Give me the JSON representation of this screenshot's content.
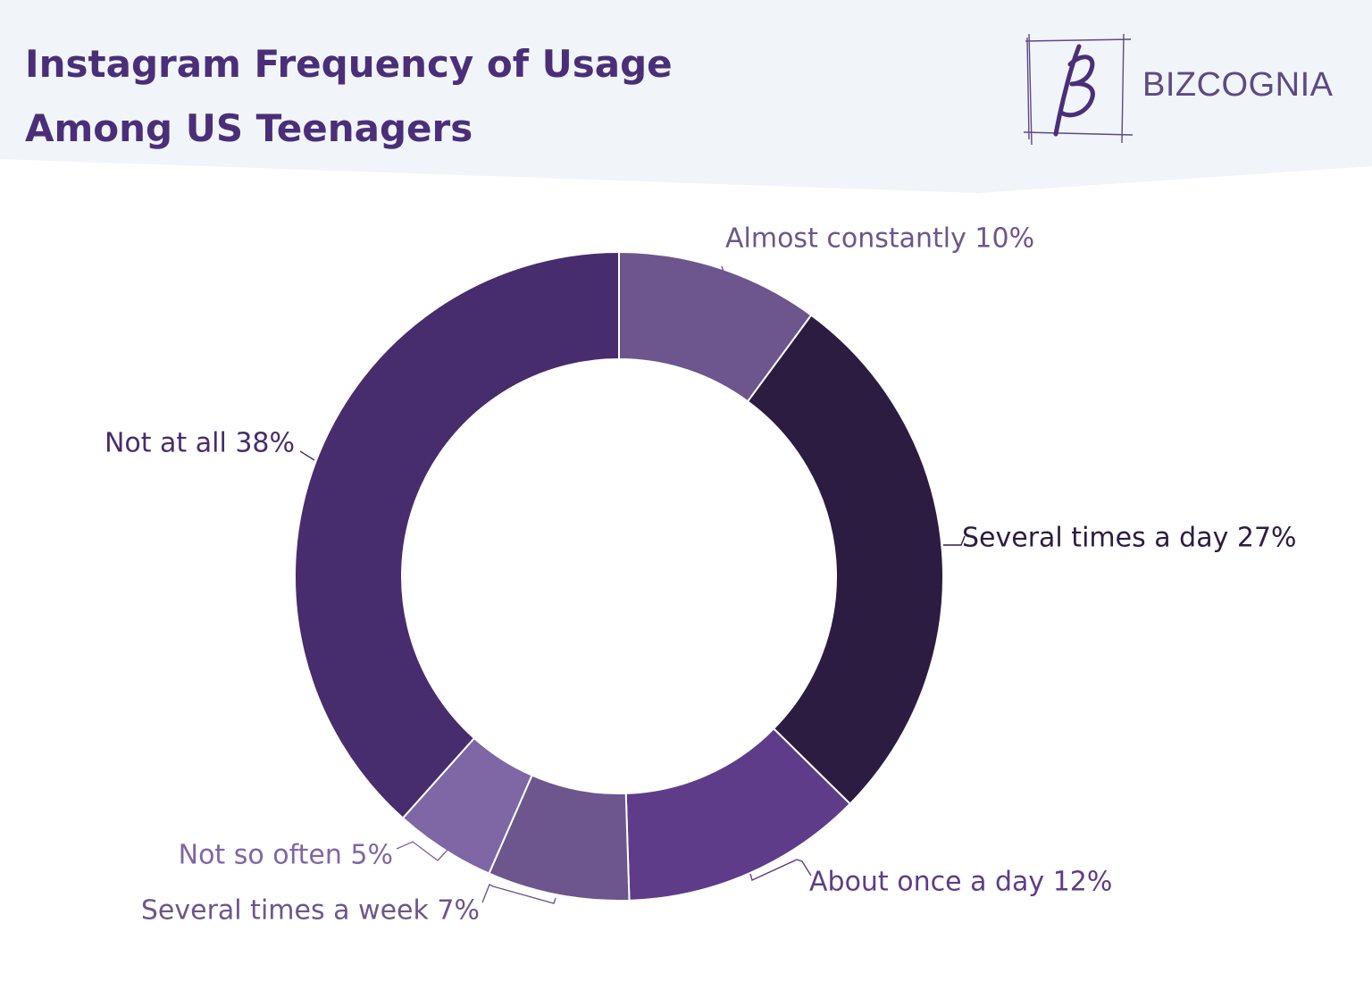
{
  "brand": {
    "name": "BIZCOGNIA"
  },
  "colors": {
    "header_bg": "#f1f4f9",
    "title": "#4a2f78"
  },
  "chart_data": {
    "type": "pie",
    "style": "donut",
    "title": {
      "line1": "Instagram Frequency of Usage",
      "line2": "Among US Teenagers"
    },
    "unit": "%",
    "start_angle_deg": 0,
    "direction": "clockwise",
    "slices": [
      {
        "label": "Almost constantly",
        "value": 10,
        "color": "#6c568d",
        "label_color": "#6c568d"
      },
      {
        "label": "Several times a day",
        "value": 27,
        "color": "#2c1c42",
        "label_color": "#2c1c42"
      },
      {
        "label": "About once a day",
        "value": 12,
        "color": "#5e3c8a",
        "label_color": "#5e3c8a"
      },
      {
        "label": "Several times a week",
        "value": 7,
        "color": "#6c568d",
        "label_color": "#6c568d"
      },
      {
        "label": "Not so often",
        "value": 5,
        "color": "#7f66a5",
        "label_color": "#7f66a5"
      },
      {
        "label": "Not at all",
        "value": 38,
        "color": "#472c6e",
        "label_color": "#472c6e"
      }
    ]
  }
}
